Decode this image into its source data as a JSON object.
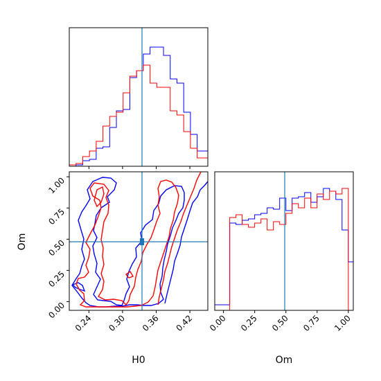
{
  "chart_data": {
    "type": "corner",
    "parameters": [
      "H0",
      "Om"
    ],
    "series_colors": {
      "blue": "#0000ff",
      "red": "#ff0000"
    },
    "truth": {
      "H0": 0.335,
      "Om": 0.49
    },
    "truth_color": "#1f77b4",
    "panels": [
      {
        "id": "hist-H0",
        "type": "histogram",
        "x_range": [
          0.205,
          0.452
        ],
        "y_range": [
          0,
          1.0
        ],
        "bin_edges": [
          0.205,
          0.217,
          0.229,
          0.241,
          0.253,
          0.265,
          0.277,
          0.289,
          0.301,
          0.313,
          0.325,
          0.337,
          0.349,
          0.361,
          0.373,
          0.385,
          0.397,
          0.409,
          0.421,
          0.433,
          0.452
        ],
        "series": [
          {
            "color": "#0000ff",
            "heights": [
              0.0,
              0.01,
              0.04,
              0.05,
              0.13,
              0.14,
              0.28,
              0.4,
              0.41,
              0.64,
              0.69,
              0.81,
              0.86,
              0.86,
              0.8,
              0.63,
              0.6,
              0.39,
              0.23,
              0.11
            ]
          },
          {
            "color": "#ff0000",
            "heights": [
              0.01,
              0.02,
              0.07,
              0.11,
              0.18,
              0.29,
              0.36,
              0.39,
              0.53,
              0.65,
              0.69,
              0.73,
              0.6,
              0.57,
              0.57,
              0.4,
              0.37,
              0.25,
              0.13,
              0.06
            ]
          }
        ],
        "x_ticks": [
          0.24,
          0.3,
          0.36,
          0.42
        ]
      },
      {
        "id": "contour-H0-Om",
        "type": "contour",
        "x_range": [
          0.205,
          0.452
        ],
        "y_range": [
          -0.07,
          1.04
        ],
        "x_ticks": [
          "0.24",
          "0.30",
          "0.36",
          "0.42"
        ],
        "y_ticks": [
          "0.00",
          "0.25",
          "0.50",
          "0.75",
          "1.00"
        ],
        "x_label": "H0",
        "y_label": "Om"
      },
      {
        "id": "hist-Om",
        "type": "histogram",
        "x_range": [
          -0.07,
          1.04
        ],
        "y_range": [
          0,
          1.0
        ],
        "bin_edges": [
          -0.07,
          -0.01,
          0.05,
          0.1,
          0.15,
          0.2,
          0.25,
          0.3,
          0.35,
          0.4,
          0.45,
          0.5,
          0.55,
          0.6,
          0.65,
          0.7,
          0.75,
          0.8,
          0.85,
          0.9,
          0.95,
          1.0,
          1.04
        ],
        "series": [
          {
            "color": "#0000ff",
            "heights": [
              0.04,
              0.04,
              0.63,
              0.62,
              0.65,
              0.66,
              0.69,
              0.7,
              0.74,
              0.73,
              0.81,
              0.72,
              0.81,
              0.82,
              0.85,
              0.78,
              0.82,
              0.88,
              0.86,
              0.8,
              0.58,
              0.35
            ]
          },
          {
            "color": "#ff0000",
            "heights": [
              0.0,
              0.0,
              0.67,
              0.69,
              0.62,
              0.6,
              0.63,
              0.66,
              0.58,
              0.64,
              0.62,
              0.7,
              0.77,
              0.74,
              0.81,
              0.74,
              0.84,
              0.8,
              0.86,
              0.84,
              0.88,
              0.0
            ]
          }
        ],
        "x_ticks": [
          "0.00",
          "0.25",
          "0.50",
          "0.75",
          "1.00"
        ],
        "x_label": "Om"
      }
    ]
  }
}
